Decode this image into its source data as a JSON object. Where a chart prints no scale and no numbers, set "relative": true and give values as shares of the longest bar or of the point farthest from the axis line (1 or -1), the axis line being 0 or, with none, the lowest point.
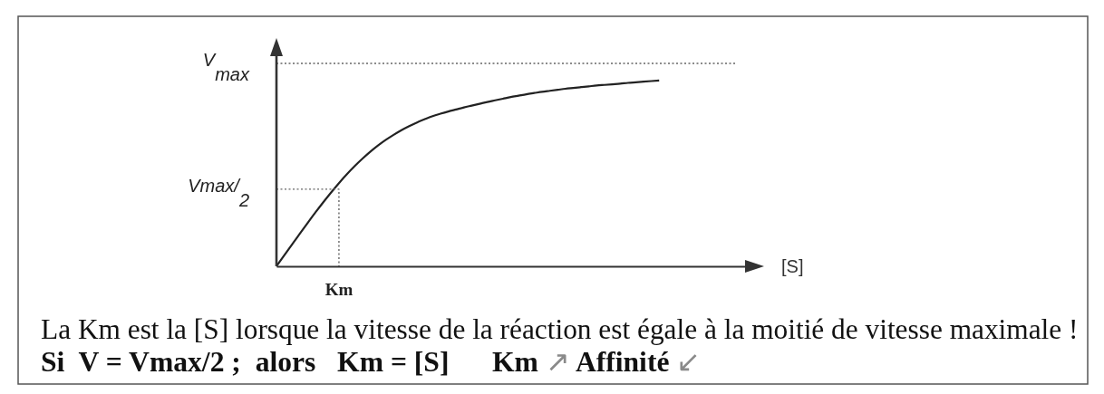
{
  "chart_data": {
    "type": "line",
    "relative": true,
    "xlabel": "[S]",
    "categories": [
      null,
      null,
      null,
      null,
      null,
      null,
      null,
      null,
      null,
      null,
      null,
      null,
      null,
      null,
      null,
      null,
      null,
      null,
      null,
      null,
      null,
      null,
      null,
      null,
      null,
      null,
      null,
      null,
      null,
      null,
      null,
      null,
      null,
      null,
      null,
      null,
      null,
      null,
      null,
      null,
      null,
      null,
      null,
      null,
      null,
      null,
      null,
      null,
      null,
      null,
      null,
      null,
      null,
      null,
      null,
      null,
      null,
      null,
      null,
      null,
      null
    ],
    "series": [
      {
        "color": "#222222",
        "line_style": "solid",
        "values": [
          0,
          0.054,
          0.108,
          0.161,
          0.214,
          0.266,
          0.316,
          0.364,
          0.41,
          0.453,
          0.493,
          0.53,
          0.564,
          0.595,
          0.623,
          0.648,
          0.671,
          0.691,
          0.709,
          0.725,
          0.74,
          0.752,
          0.763,
          0.773,
          0.783,
          0.792,
          0.801,
          0.81,
          0.818,
          0.826,
          0.834,
          0.841,
          0.848,
          0.854,
          0.86,
          0.865,
          0.87,
          0.875,
          0.879,
          0.883,
          0.887,
          0.891,
          0.894,
          0.897,
          0.9,
          0.904,
          0.907,
          0.91,
          0.913,
          0.916,
          null,
          null,
          null,
          null,
          null,
          null,
          null,
          null,
          null,
          null,
          null
        ]
      },
      {
        "name": "V$_{max}$",
        "color": "#666666",
        "line_style": "dotted",
        "values": [
          1,
          1,
          1,
          1,
          1,
          1,
          1,
          1,
          1,
          1,
          1,
          1,
          1,
          1,
          1,
          1,
          1,
          1,
          1,
          1,
          1,
          1,
          1,
          1,
          1,
          1,
          1,
          1,
          1,
          1,
          1,
          1,
          1,
          1,
          1,
          1,
          1,
          1,
          1,
          1,
          1,
          1,
          1,
          1,
          1,
          1,
          1,
          1,
          1,
          1,
          1,
          1,
          1,
          1,
          1,
          1,
          1,
          1,
          1,
          1,
          null
        ]
      },
      {
        "name": "Vmax/$_{2}$",
        "type": "step",
        "color": "#666666",
        "line_style": "dotted",
        "values": [
          0.38,
          0.38,
          0.38,
          0.38,
          0.38,
          0.38,
          0.38,
          0.38,
          0,
          null,
          null,
          null,
          null,
          null,
          null,
          null,
          null,
          null,
          null,
          null,
          null,
          null,
          null,
          null,
          null,
          null,
          null,
          null,
          null,
          null,
          null,
          null,
          null,
          null,
          null,
          null,
          null,
          null,
          null,
          null,
          null,
          null,
          null,
          null,
          null,
          null,
          null,
          null,
          null,
          null,
          null,
          null,
          null,
          null,
          null,
          null,
          null,
          null,
          null,
          null,
          null
        ]
      }
    ],
    "annotations": [
      "Km",
      "La Km est la [S] lorsque la vitesse de la réaction est égale à la moitié de vitesse maximale !",
      "Si  V = Vmax/2 ;  alors   Km = [S]      Km ↗ Affinité ↙"
    ]
  }
}
